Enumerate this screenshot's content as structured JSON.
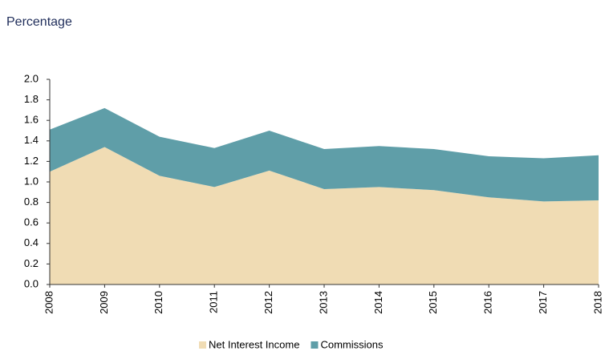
{
  "chart_data": {
    "type": "stacked_area",
    "title": "Percentage",
    "categories": [
      "2008",
      "2009",
      "2010",
      "2011",
      "2012",
      "2013",
      "2014",
      "2015",
      "2016",
      "2017",
      "2018"
    ],
    "series": [
      {
        "name": "Net Interest Income",
        "color": "#f0dcb4",
        "values": [
          1.1,
          1.34,
          1.06,
          0.95,
          1.11,
          0.93,
          0.95,
          0.92,
          0.85,
          0.81,
          0.82
        ]
      },
      {
        "name": "Commissions",
        "color": "#5f9ea8",
        "values": [
          0.41,
          0.38,
          0.38,
          0.38,
          0.39,
          0.39,
          0.4,
          0.4,
          0.4,
          0.42,
          0.44
        ]
      }
    ],
    "ylim": [
      0,
      2
    ],
    "yticks": [
      {
        "value": 0,
        "label": "0.0"
      },
      {
        "value": 0.2,
        "label": "0.2"
      },
      {
        "value": 0.4,
        "label": "0.4"
      },
      {
        "value": 0.6,
        "label": "0.6"
      },
      {
        "value": 0.8,
        "label": "0.8"
      },
      {
        "value": 1,
        "label": "1.0"
      },
      {
        "value": 1.2,
        "label": "1.2"
      },
      {
        "value": 1.4,
        "label": "1.4"
      },
      {
        "value": 1.6,
        "label": "1.6"
      },
      {
        "value": 1.8,
        "label": "1.8"
      },
      {
        "value": 2,
        "label": "2.0"
      }
    ],
    "legend": "bottom"
  }
}
